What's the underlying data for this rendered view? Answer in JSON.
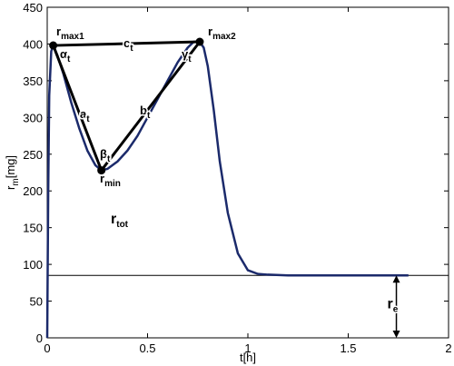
{
  "chart_data": {
    "type": "line",
    "xlabel": "t[h]",
    "ylabel": {
      "base": "r",
      "sub": "m",
      "unit": "[mg]"
    },
    "xlim": [
      0,
      2
    ],
    "ylim": [
      0,
      450
    ],
    "xticks": [
      0,
      0.5,
      1,
      1.5,
      2
    ],
    "yticks": [
      0,
      50,
      100,
      150,
      200,
      250,
      300,
      350,
      400,
      450
    ],
    "series": [
      {
        "color": "#1b2a6b",
        "x": [
          0,
          0.005,
          0.01,
          0.02,
          0.03,
          0.05,
          0.08,
          0.12,
          0.16,
          0.2,
          0.24,
          0.27,
          0.3,
          0.35,
          0.4,
          0.45,
          0.5,
          0.55,
          0.6,
          0.65,
          0.7,
          0.73,
          0.76,
          0.78,
          0.8,
          0.83,
          0.86,
          0.9,
          0.95,
          1.0,
          1.05,
          1.1,
          1.2,
          1.4,
          1.6,
          1.8
        ],
        "y": [
          0,
          200,
          330,
          390,
          398,
          385,
          360,
          320,
          285,
          255,
          235,
          228,
          230,
          240,
          255,
          275,
          300,
          325,
          350,
          375,
          395,
          403,
          403,
          395,
          370,
          310,
          240,
          170,
          115,
          92,
          87,
          86,
          85,
          85,
          85,
          85
        ]
      }
    ],
    "points": [
      {
        "label": {
          "base": "r",
          "sub": "max1"
        },
        "x": 0.03,
        "y": 398
      },
      {
        "label": {
          "base": "r",
          "sub": "min"
        },
        "x": 0.27,
        "y": 228
      },
      {
        "label": {
          "base": "r",
          "sub": "max2"
        },
        "x": 0.76,
        "y": 403
      }
    ],
    "edges": [
      {
        "base": "c",
        "sub": "t"
      },
      {
        "base": "a",
        "sub": "t"
      },
      {
        "base": "b",
        "sub": "t"
      }
    ],
    "angles": [
      {
        "base": "α",
        "sub": "t"
      },
      {
        "base": "β",
        "sub": "t"
      },
      {
        "base": "γ",
        "sub": "t"
      }
    ],
    "total_label": {
      "base": "r",
      "sub": "tot"
    },
    "hline": 85,
    "hline_label": {
      "base": "r",
      "sub": "e"
    },
    "hline_label_x": 1.74,
    "line_color": "#000000"
  }
}
